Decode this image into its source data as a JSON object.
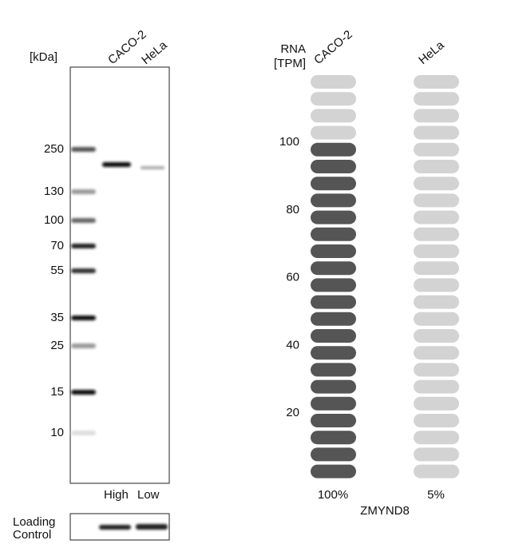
{
  "blot": {
    "unit_label": "[kDa]",
    "lanes": [
      "CACO-2",
      "HeLa"
    ],
    "markers": [
      "250",
      "130",
      "100",
      "70",
      "55",
      "35",
      "25",
      "15",
      "10"
    ],
    "intensity_labels": [
      "High",
      "Low"
    ],
    "loading_control_label": [
      "Loading",
      "Control"
    ]
  },
  "rna": {
    "axis_label": [
      "RNA",
      "[TPM]"
    ],
    "lanes": [
      "CACO-2",
      "HeLa"
    ],
    "ticks": [
      100,
      80,
      60,
      40,
      20
    ],
    "lane_values": [
      "100%",
      "5%"
    ],
    "gene": "ZMYND8"
  }
}
